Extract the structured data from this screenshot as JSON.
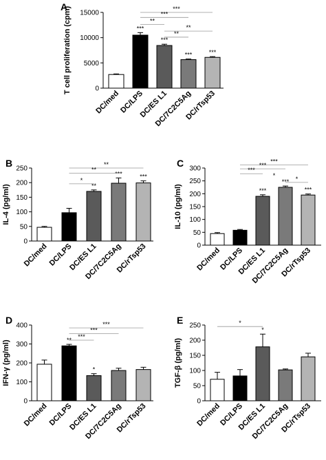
{
  "chart_data": [
    {
      "panel": "A",
      "type": "bar",
      "ylabel": "T cell proliferation (cpm)",
      "ylim": [
        0,
        15000
      ],
      "yticks": [
        0,
        5000,
        10000,
        15000
      ],
      "categories": [
        "DC/med",
        "DC/LPS",
        "DC/ES L1",
        "DC/7C2C5Ag",
        "DC/rTsp53"
      ],
      "values": [
        2700,
        10500,
        8450,
        5650,
        6100
      ],
      "errors": [
        120,
        500,
        250,
        120,
        150
      ],
      "fills": [
        "#ffffff",
        "#000000",
        "#5a5a5a",
        "#7a7a7a",
        "#b4b4b4"
      ],
      "bar_labels": [
        "",
        "***",
        "***",
        "***",
        "***"
      ],
      "brackets": [
        {
          "from": 1,
          "to": 4,
          "label": "***",
          "level": 15000
        },
        {
          "from": 1,
          "to": 3,
          "label": "***",
          "level": 14000
        },
        {
          "from": 1,
          "to": 2,
          "label": "**",
          "level": 12600
        },
        {
          "from": 2,
          "to": 4,
          "label": "**",
          "level": 11300
        },
        {
          "from": 2,
          "to": 3,
          "label": "**",
          "level": 10100
        }
      ]
    },
    {
      "panel": "B",
      "type": "bar",
      "ylabel": "IL-4 (pg/ml)",
      "ylim": [
        0,
        250
      ],
      "yticks": [
        0,
        50,
        100,
        150,
        200,
        250
      ],
      "categories": [
        "DC/med",
        "DC/LPS",
        "DC/ES L1",
        "DC/7C2C5Ag",
        "DC/rTsp53"
      ],
      "values": [
        47,
        97,
        170,
        198,
        199
      ],
      "errors": [
        3,
        15,
        5,
        18,
        7
      ],
      "fills": [
        "#ffffff",
        "#000000",
        "#5a5a5a",
        "#7a7a7a",
        "#b4b4b4"
      ],
      "bar_labels": [
        "",
        "",
        "**",
        "***",
        "***"
      ],
      "brackets": [
        {
          "from": 1,
          "to": 4,
          "label": "**",
          "level": 250
        },
        {
          "from": 1,
          "to": 3,
          "label": "**",
          "level": 232
        },
        {
          "from": 1,
          "to": 2,
          "label": "*",
          "level": 196
        }
      ]
    },
    {
      "panel": "C",
      "type": "bar",
      "ylabel": "IL-10 (pg/ml)",
      "ylim": [
        0,
        300
      ],
      "yticks": [
        0,
        50,
        100,
        150,
        200,
        250,
        300
      ],
      "categories": [
        "DC/med",
        "DC/LPS",
        "DC/ES L1",
        "DC/7C2C5Ag",
        "DC/rTsp53"
      ],
      "values": [
        45,
        58,
        190,
        225,
        195
      ],
      "errors": [
        4,
        3,
        6,
        5,
        4
      ],
      "fills": [
        "#ffffff",
        "#000000",
        "#5a5a5a",
        "#7a7a7a",
        "#b4b4b4"
      ],
      "bar_labels": [
        "",
        "",
        "***",
        "***",
        "***"
      ],
      "side_label": {
        "text": "*",
        "value": 263
      },
      "brackets": [
        {
          "from": 1,
          "to": 4,
          "label": "***",
          "level": 312
        },
        {
          "from": 1,
          "to": 3,
          "label": "***",
          "level": 297
        },
        {
          "from": 1,
          "to": 2,
          "label": "***",
          "level": 278
        },
        {
          "from": 3,
          "to": 4,
          "label": "*",
          "level": 244
        }
      ]
    },
    {
      "panel": "D",
      "type": "bar",
      "ylabel": "IFN-γ (pg/ml)",
      "ylim": [
        0,
        400
      ],
      "yticks": [
        0,
        100,
        200,
        300,
        400
      ],
      "categories": [
        "DC/med",
        "DC/LPS",
        "DC/ES L1",
        "DC/7C2C5Ag",
        "DC/rTsp53"
      ],
      "values": [
        193,
        290,
        133,
        160,
        165
      ],
      "errors": [
        22,
        8,
        10,
        12,
        12
      ],
      "fills": [
        "#ffffff",
        "#000000",
        "#5a5a5a",
        "#7a7a7a",
        "#b4b4b4"
      ],
      "bar_labels": [
        "",
        "**",
        "*",
        "",
        ""
      ],
      "brackets": [
        {
          "from": 1,
          "to": 4,
          "label": "***",
          "level": 385
        },
        {
          "from": 1,
          "to": 3,
          "label": "***",
          "level": 355
        },
        {
          "from": 1,
          "to": 2,
          "label": "***",
          "level": 320
        }
      ]
    },
    {
      "panel": "E",
      "type": "bar",
      "ylabel": "TGF-β (pg/ml)",
      "ylim": [
        0,
        250
      ],
      "yticks": [
        0,
        50,
        100,
        150,
        200,
        250
      ],
      "categories": [
        "DC/med",
        "DC/LPS",
        "DC/ES L1",
        "DC/7C2C5Ag",
        "DC/rTsp53"
      ],
      "values": [
        71,
        82,
        178,
        102,
        145
      ],
      "errors": [
        23,
        21,
        42,
        3,
        12
      ],
      "fills": [
        "#ffffff",
        "#000000",
        "#5a5a5a",
        "#7a7a7a",
        "#b4b4b4"
      ],
      "bar_labels": [
        "",
        "",
        "*",
        "",
        ""
      ],
      "brackets": [
        {
          "from": 0,
          "to": 2,
          "label": "*",
          "level": 245
        }
      ]
    }
  ]
}
